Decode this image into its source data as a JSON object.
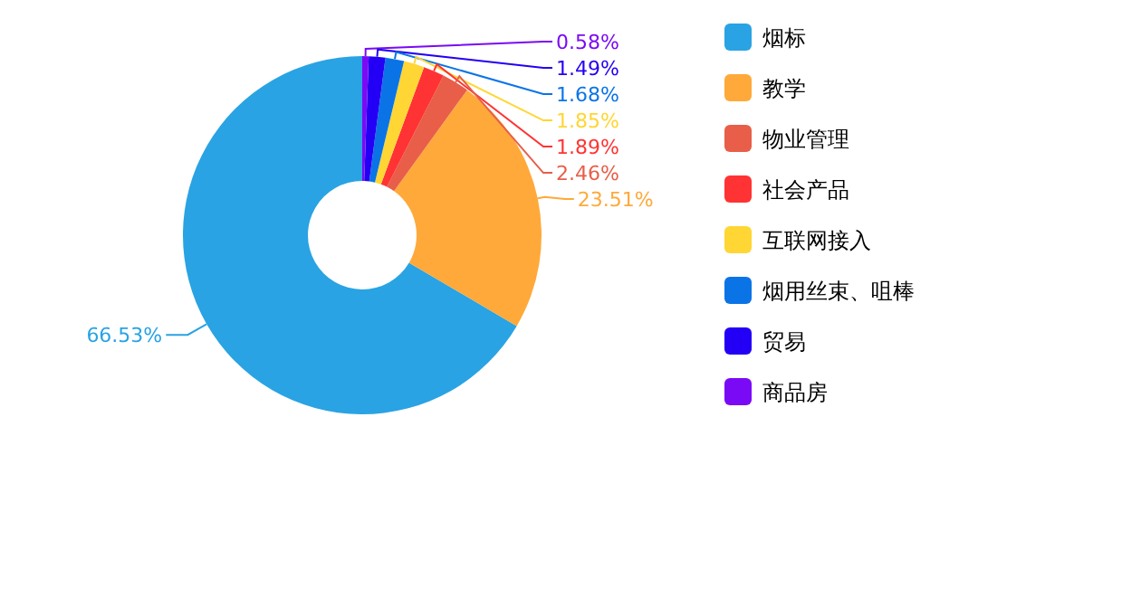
{
  "chart_data": {
    "type": "donut",
    "categories": [
      "烟标",
      "教学",
      "物业管理",
      "社会产品",
      "互联网接入",
      "烟用丝束、咀棒",
      "贸易",
      "商品房"
    ],
    "values": [
      66.53,
      23.51,
      2.46,
      1.89,
      1.85,
      1.68,
      1.49,
      0.58
    ],
    "colors": [
      "#29a3e3",
      "#ffa93a",
      "#e85e48",
      "#ff3333",
      "#ffd633",
      "#0a74e6",
      "#2300f5",
      "#7a0af5"
    ],
    "value_labels": [
      "66.53%",
      "23.51%",
      "2.46%",
      "1.89%",
      "1.85%",
      "1.68%",
      "1.49%",
      "0.58%"
    ],
    "legend": "right"
  }
}
